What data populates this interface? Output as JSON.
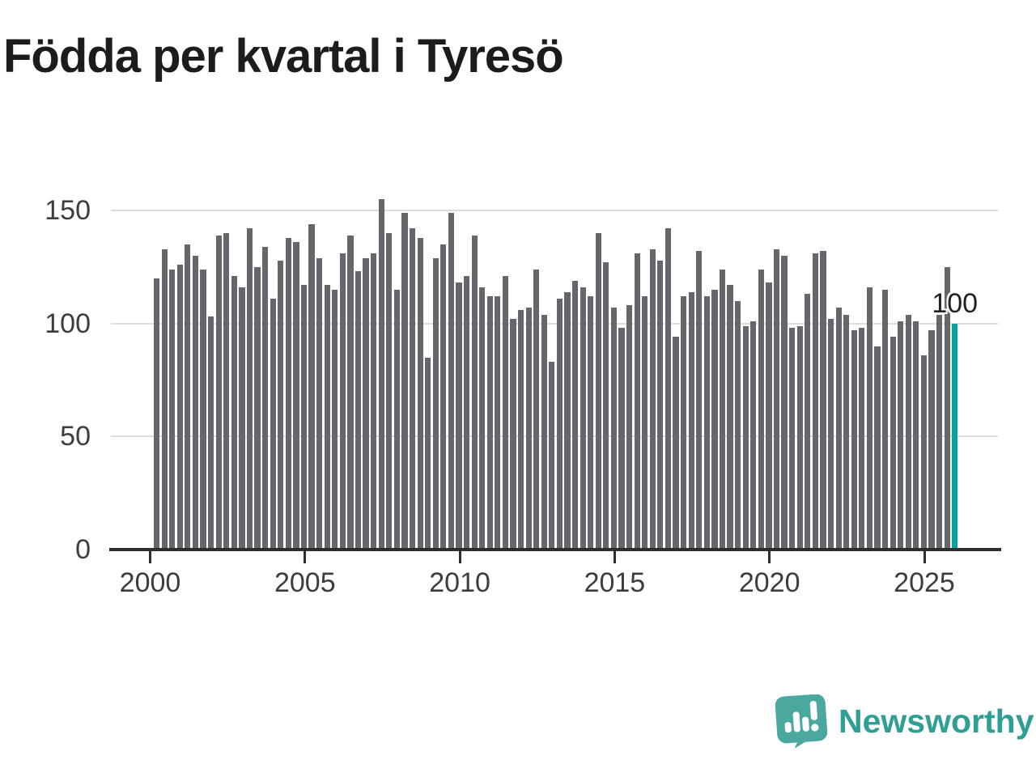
{
  "chart_data": {
    "type": "bar",
    "title": "Födda per kvartal i Tyresö",
    "x_unit": "quarter",
    "x_start": "2000 Q1",
    "x_end": "2025 Q4",
    "categories_note": "104 consecutive quarters from 2000 Q1 to 2025 Q4",
    "values": [
      120,
      133,
      124,
      126,
      135,
      130,
      124,
      103,
      139,
      140,
      121,
      116,
      142,
      125,
      134,
      111,
      128,
      138,
      136,
      117,
      144,
      129,
      117,
      115,
      131,
      139,
      123,
      129,
      131,
      155,
      140,
      115,
      149,
      142,
      138,
      85,
      129,
      135,
      149,
      118,
      121,
      139,
      116,
      112,
      112,
      121,
      102,
      106,
      107,
      124,
      104,
      83,
      111,
      114,
      119,
      116,
      112,
      140,
      127,
      107,
      98,
      108,
      131,
      112,
      133,
      128,
      142,
      94,
      112,
      114,
      132,
      112,
      115,
      124,
      117,
      110,
      99,
      101,
      124,
      118,
      133,
      130,
      98,
      99,
      113,
      131,
      132,
      102,
      107,
      104,
      97,
      98,
      116,
      90,
      115,
      94,
      101,
      104,
      101,
      86,
      97,
      104,
      125,
      100
    ],
    "ylim": [
      0,
      155
    ],
    "yticks": [
      "0",
      "50",
      "100",
      "150"
    ],
    "xticks": [
      "2000",
      "2005",
      "2010",
      "2015",
      "2020",
      "2025"
    ],
    "grid": "horizontal",
    "legend": "none",
    "bar_color": "#66666d",
    "highlight": {
      "index": 103,
      "quarter": "2025 Q4",
      "value": 100,
      "label": "100",
      "color": "#00a59b"
    }
  },
  "logo": {
    "text": "Newsworthy",
    "text_color": "#2f9e94",
    "badge_color": "#4aa89f"
  }
}
